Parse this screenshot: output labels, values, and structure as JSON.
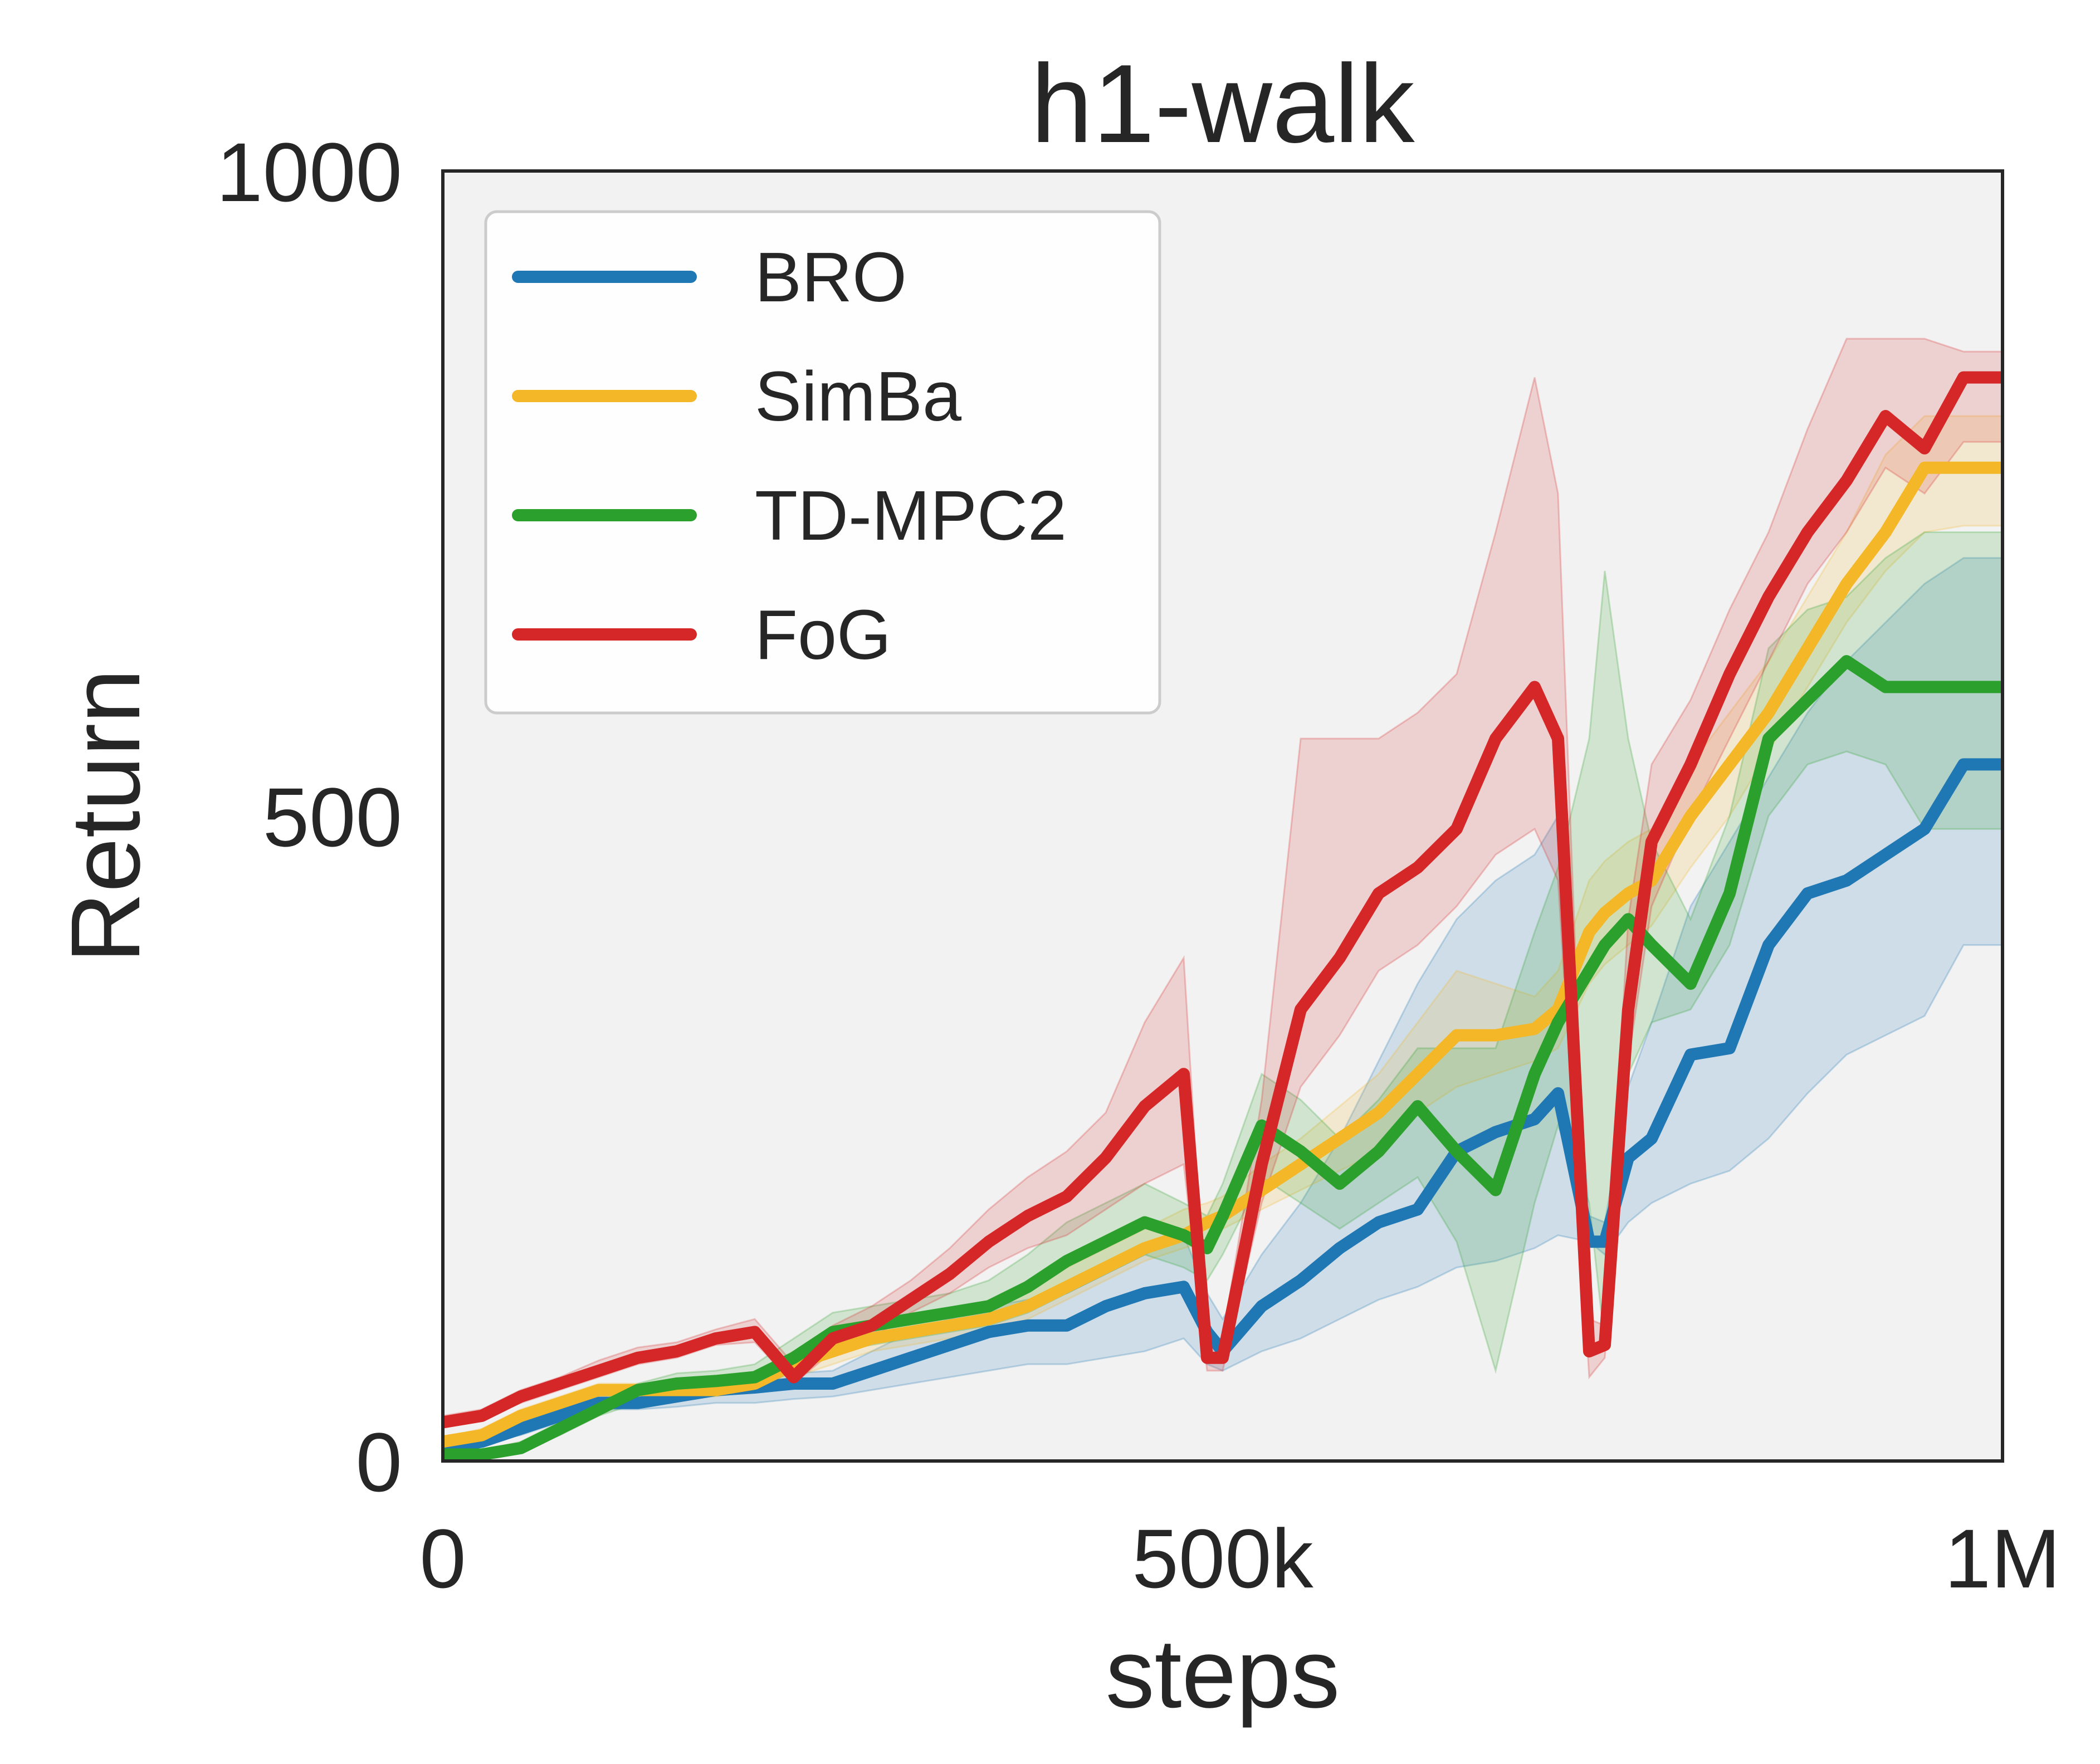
{
  "chart_data": {
    "type": "line",
    "title": "h1-walk",
    "xlabel": "steps",
    "ylabel": "Return",
    "xlim": [
      0,
      1000000
    ],
    "ylim": [
      0,
      1000
    ],
    "xticks": [
      {
        "value": 0,
        "label": "0"
      },
      {
        "value": 500000,
        "label": "500k"
      },
      {
        "value": 1000000,
        "label": "1M"
      }
    ],
    "yticks": [
      {
        "value": 0,
        "label": "0"
      },
      {
        "value": 500,
        "label": "500"
      },
      {
        "value": 1000,
        "label": "1000"
      }
    ],
    "grid": false,
    "legend_position": "top-left",
    "x": [
      0,
      25000,
      50000,
      75000,
      100000,
      125000,
      150000,
      175000,
      200000,
      225000,
      250000,
      275000,
      300000,
      325000,
      350000,
      375000,
      400000,
      425000,
      450000,
      475000,
      490000,
      500000,
      525000,
      550000,
      575000,
      600000,
      625000,
      650000,
      675000,
      700000,
      715000,
      735000,
      745000,
      760000,
      775000,
      800000,
      825000,
      850000,
      875000,
      900000,
      925000,
      950000,
      975000,
      1000000
    ],
    "series": [
      {
        "name": "BRO",
        "color": "#1f77b4",
        "values": [
          10,
          15,
          25,
          35,
          45,
          45,
          50,
          55,
          57,
          60,
          60,
          70,
          80,
          90,
          100,
          105,
          105,
          120,
          130,
          135,
          100,
          85,
          120,
          140,
          165,
          185,
          195,
          240,
          255,
          265,
          285,
          170,
          170,
          235,
          250,
          315,
          320,
          400,
          440,
          450,
          470,
          490,
          540,
          540
        ],
        "lower": [
          10,
          15,
          20,
          30,
          40,
          40,
          42,
          45,
          45,
          48,
          50,
          55,
          60,
          65,
          70,
          75,
          75,
          80,
          85,
          95,
          75,
          70,
          85,
          95,
          110,
          125,
          135,
          150,
          155,
          165,
          175,
          170,
          160,
          185,
          200,
          215,
          225,
          250,
          285,
          315,
          330,
          345,
          400,
          400
        ],
        "upper": [
          12,
          18,
          28,
          40,
          50,
          52,
          58,
          62,
          65,
          68,
          70,
          85,
          100,
          110,
          120,
          125,
          130,
          145,
          160,
          175,
          130,
          110,
          160,
          200,
          250,
          310,
          370,
          420,
          450,
          470,
          500,
          190,
          185,
          290,
          340,
          430,
          480,
          530,
          580,
          620,
          650,
          680,
          700,
          700
        ]
      },
      {
        "name": "SimBa",
        "color": "#f4b728",
        "values": [
          15,
          20,
          35,
          45,
          55,
          55,
          55,
          55,
          60,
          75,
          85,
          95,
          100,
          105,
          110,
          120,
          135,
          150,
          165,
          175,
          185,
          190,
          210,
          230,
          250,
          270,
          300,
          330,
          330,
          335,
          350,
          410,
          425,
          440,
          450,
          500,
          540,
          580,
          630,
          680,
          720,
          770,
          770,
          770
        ],
        "lower": [
          12,
          15,
          30,
          40,
          50,
          50,
          50,
          50,
          55,
          65,
          75,
          85,
          90,
          95,
          100,
          110,
          125,
          140,
          155,
          165,
          170,
          180,
          195,
          210,
          225,
          240,
          270,
          290,
          300,
          310,
          320,
          370,
          385,
          400,
          415,
          460,
          500,
          550,
          600,
          650,
          690,
          720,
          725,
          725
        ],
        "upper": [
          18,
          25,
          40,
          50,
          60,
          60,
          60,
          62,
          68,
          85,
          95,
          105,
          110,
          115,
          120,
          135,
          150,
          165,
          180,
          195,
          200,
          205,
          230,
          250,
          275,
          300,
          340,
          380,
          370,
          360,
          380,
          450,
          465,
          480,
          490,
          540,
          580,
          620,
          670,
          720,
          780,
          810,
          810,
          810
        ]
      },
      {
        "name": "TD-MPC2",
        "color": "#2ca02c",
        "values": [
          5,
          5,
          10,
          25,
          40,
          55,
          60,
          62,
          65,
          80,
          100,
          105,
          110,
          115,
          120,
          135,
          155,
          170,
          185,
          175,
          165,
          190,
          260,
          240,
          215,
          240,
          275,
          240,
          210,
          300,
          340,
          380,
          400,
          420,
          400,
          370,
          440,
          560,
          590,
          620,
          600,
          600,
          600,
          600
        ],
        "lower": [
          3,
          3,
          8,
          20,
          35,
          45,
          50,
          52,
          55,
          70,
          85,
          90,
          95,
          100,
          105,
          115,
          130,
          145,
          160,
          150,
          140,
          160,
          220,
          200,
          180,
          200,
          220,
          170,
          70,
          200,
          260,
          200,
          90,
          300,
          340,
          350,
          400,
          500,
          540,
          550,
          540,
          490,
          490,
          490
        ],
        "upper": [
          8,
          8,
          15,
          30,
          45,
          60,
          68,
          70,
          75,
          95,
          115,
          120,
          125,
          130,
          140,
          160,
          185,
          200,
          215,
          200,
          190,
          215,
          300,
          280,
          250,
          280,
          320,
          320,
          320,
          410,
          460,
          560,
          690,
          560,
          480,
          420,
          500,
          630,
          660,
          670,
          700,
          720,
          720,
          720
        ]
      },
      {
        "name": "FoG",
        "color": "#d62728",
        "values": [
          30,
          35,
          50,
          60,
          70,
          80,
          85,
          95,
          100,
          65,
          95,
          105,
          125,
          145,
          170,
          190,
          205,
          235,
          275,
          300,
          80,
          80,
          230,
          350,
          390,
          440,
          460,
          490,
          560,
          600,
          560,
          85,
          90,
          350,
          480,
          540,
          610,
          670,
          720,
          760,
          810,
          785,
          840,
          840
        ],
        "lower": [
          28,
          32,
          45,
          55,
          65,
          75,
          80,
          90,
          92,
          60,
          85,
          95,
          115,
          130,
          150,
          165,
          175,
          195,
          215,
          230,
          70,
          70,
          200,
          290,
          330,
          380,
          400,
          430,
          470,
          490,
          450,
          65,
          80,
          310,
          430,
          500,
          560,
          620,
          680,
          720,
          770,
          750,
          790,
          790
        ],
        "upper": [
          35,
          40,
          55,
          65,
          78,
          88,
          92,
          102,
          110,
          75,
          105,
          120,
          140,
          165,
          195,
          220,
          240,
          270,
          340,
          390,
          95,
          95,
          280,
          560,
          560,
          560,
          580,
          610,
          720,
          840,
          750,
          110,
          105,
          420,
          540,
          590,
          660,
          720,
          800,
          870,
          870,
          870,
          860,
          860
        ]
      }
    ]
  }
}
